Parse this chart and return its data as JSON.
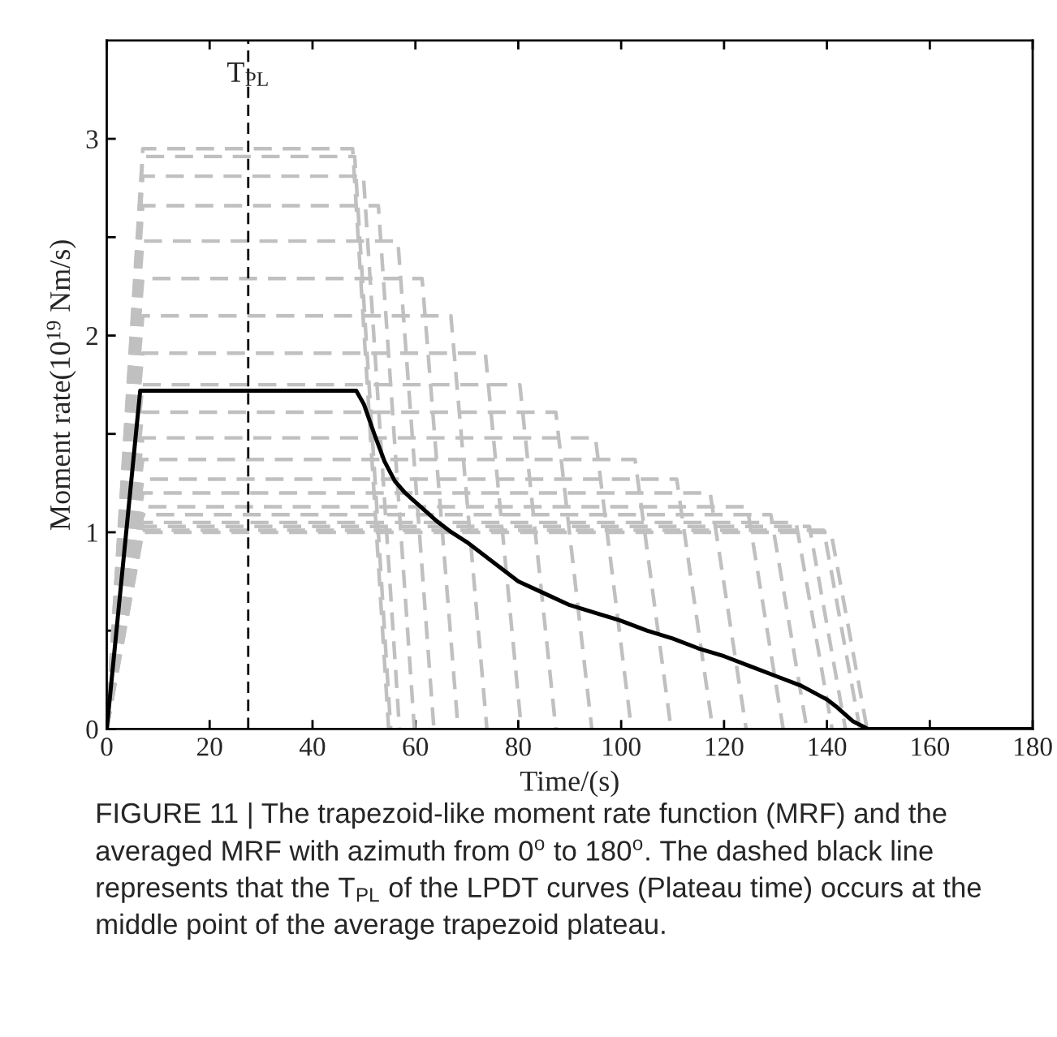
{
  "chart_data": {
    "type": "line",
    "xlabel": "Time/(s)",
    "ylabel": "Moment rate(10$^{19}$ Nm/s)",
    "xlim": [
      0,
      180
    ],
    "xticks": [
      0,
      20,
      40,
      60,
      80,
      100,
      120,
      140,
      160,
      180
    ],
    "ylim": [
      0,
      3.5
    ],
    "yticks": [
      0,
      {
        "value": 0.5,
        "label": null
      },
      1,
      {
        "value": 1.5,
        "label": null
      },
      2,
      {
        "value": 2.5,
        "label": null
      },
      3
    ],
    "grid": false,
    "legend": false,
    "marker": "none",
    "ref_lines": [
      {
        "axis": "x",
        "value": 27.5,
        "label": "T$_{PL}$",
        "color": "#000000",
        "line_style": "dashed"
      }
    ],
    "annotations": [
      "FIGURE 11 | The trapezoid-like moment rate function (MRF) and the averaged MRF with azimuth from 0$^{o}$ to 180$^{o}$. The dashed black line represents that the T$_{PL}$ of the LPDT curves (Plateau time) occurs at the middle point of the average trapezoid plateau."
    ],
    "series": [
      {
        "color": "#c0c0c0",
        "line_style": "dashed",
        "x": [
          0,
          7,
          47.8,
          54.8
        ],
        "values": [
          0,
          2.95,
          2.95,
          0
        ]
      },
      {
        "color": "#c0c0c0",
        "line_style": "dashed",
        "x": [
          0,
          7,
          48.2,
          55.2
        ],
        "values": [
          0,
          2.91,
          2.91,
          0
        ]
      },
      {
        "color": "#c0c0c0",
        "line_style": "dashed",
        "x": [
          0,
          7,
          49.9,
          56.9
        ],
        "values": [
          0,
          2.81,
          2.81,
          0
        ]
      },
      {
        "color": "#c0c0c0",
        "line_style": "dashed",
        "x": [
          0,
          7,
          52.8,
          59.8
        ],
        "values": [
          0,
          2.66,
          2.66,
          0
        ]
      },
      {
        "color": "#c0c0c0",
        "line_style": "dashed",
        "x": [
          0,
          7,
          56.6,
          63.6
        ],
        "values": [
          0,
          2.48,
          2.48,
          0
        ]
      },
      {
        "color": "#c0c0c0",
        "line_style": "dashed",
        "x": [
          0,
          7,
          61.3,
          68.3
        ],
        "values": [
          0,
          2.29,
          2.29,
          0
        ]
      },
      {
        "color": "#c0c0c0",
        "line_style": "dashed",
        "x": [
          0,
          7,
          66.9,
          73.9
        ],
        "values": [
          0,
          2.1,
          2.1,
          0
        ]
      },
      {
        "color": "#c0c0c0",
        "line_style": "dashed",
        "x": [
          0,
          7,
          73.6,
          80.6
        ],
        "values": [
          0,
          1.91,
          1.91,
          0
        ]
      },
      {
        "color": "#c0c0c0",
        "line_style": "dashed",
        "x": [
          0,
          7,
          80.3,
          87.3
        ],
        "values": [
          0,
          1.75,
          1.75,
          0
        ]
      },
      {
        "color": "#c0c0c0",
        "line_style": "dashed",
        "x": [
          0,
          7,
          87.3,
          94.3
        ],
        "values": [
          0,
          1.61,
          1.61,
          0
        ]
      },
      {
        "color": "#c0c0c0",
        "line_style": "dashed",
        "x": [
          0,
          7,
          95.0,
          102.0
        ],
        "values": [
          0,
          1.48,
          1.48,
          0
        ]
      },
      {
        "color": "#c0c0c0",
        "line_style": "dashed",
        "x": [
          0,
          7,
          102.7,
          109.7
        ],
        "values": [
          0,
          1.37,
          1.37,
          0
        ]
      },
      {
        "color": "#c0c0c0",
        "line_style": "dashed",
        "x": [
          0,
          7,
          110.8,
          117.8
        ],
        "values": [
          0,
          1.27,
          1.27,
          0
        ]
      },
      {
        "color": "#c0c0c0",
        "line_style": "dashed",
        "x": [
          0,
          7,
          117.3,
          124.3
        ],
        "values": [
          0,
          1.2,
          1.2,
          0
        ]
      },
      {
        "color": "#c0c0c0",
        "line_style": "dashed",
        "x": [
          0,
          7,
          124.5,
          131.5
        ],
        "values": [
          0,
          1.13,
          1.13,
          0
        ]
      },
      {
        "color": "#c0c0c0",
        "line_style": "dashed",
        "x": [
          0,
          7,
          129.1,
          136.1
        ],
        "values": [
          0,
          1.09,
          1.09,
          0
        ]
      },
      {
        "color": "#c0c0c0",
        "line_style": "dashed",
        "x": [
          0,
          7,
          134.0,
          141.0
        ],
        "values": [
          0,
          1.05,
          1.05,
          0
        ]
      },
      {
        "color": "#c0c0c0",
        "line_style": "dashed",
        "x": [
          0,
          7,
          136.6,
          143.6
        ],
        "values": [
          0,
          1.03,
          1.03,
          0
        ]
      },
      {
        "color": "#c0c0c0",
        "line_style": "dashed",
        "x": [
          0,
          7,
          139.4,
          146.4
        ],
        "values": [
          0,
          1.01,
          1.01,
          0
        ]
      },
      {
        "color": "#c0c0c0",
        "line_style": "dashed",
        "x": [
          0,
          7,
          140.8,
          147.8
        ],
        "values": [
          0,
          1.0,
          1.0,
          0
        ]
      },
      {
        "color": "#000000",
        "line_style": "solid",
        "x": [
          0,
          6.5,
          48.5,
          50,
          52,
          54,
          56,
          58,
          61,
          64,
          67,
          70,
          75,
          80,
          85,
          90,
          95,
          100,
          105,
          110,
          115,
          120,
          125,
          130,
          135,
          140,
          142,
          145,
          148,
          180
        ],
        "values": [
          0,
          1.72,
          1.72,
          1.65,
          1.5,
          1.36,
          1.26,
          1.2,
          1.13,
          1.06,
          1.0,
          0.95,
          0.85,
          0.75,
          0.69,
          0.63,
          0.59,
          0.55,
          0.5,
          0.46,
          0.41,
          0.37,
          0.32,
          0.27,
          0.22,
          0.15,
          0.11,
          0.04,
          0,
          0
        ]
      }
    ]
  }
}
